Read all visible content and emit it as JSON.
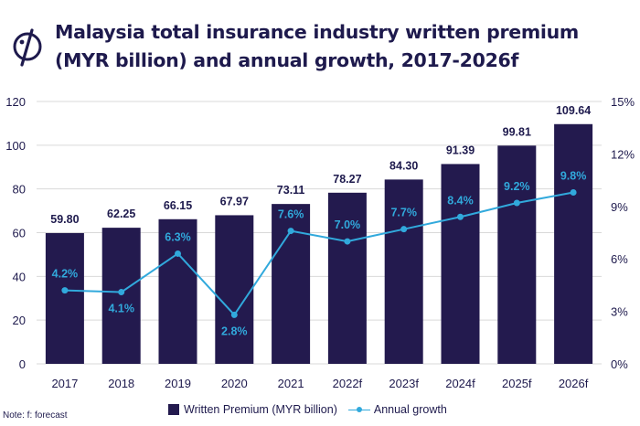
{
  "title": "Malaysia total insurance industry written premium (MYR billion) and annual growth, 2017-2026f",
  "note": "Note: f: forecast",
  "legend": {
    "bar_label": "Written Premium (MYR billion)",
    "line_label": "Annual growth"
  },
  "colors": {
    "bar": "#231a4e",
    "line": "#31a9dc",
    "grid": "#d9d9d9",
    "text": "#1e1a4d"
  },
  "chart_data": {
    "type": "bar",
    "title": "Malaysia total insurance industry written premium (MYR billion) and annual growth, 2017-2026f",
    "categories": [
      "2017",
      "2018",
      "2019",
      "2020",
      "2021",
      "2022f",
      "2023f",
      "2024f",
      "2025f",
      "2026f"
    ],
    "series": [
      {
        "name": "Written Premium (MYR billion)",
        "type": "bar",
        "axis": "left",
        "values": [
          59.8,
          62.25,
          66.15,
          67.97,
          73.11,
          78.27,
          84.3,
          91.39,
          99.81,
          109.64
        ],
        "labels": [
          "59.80",
          "62.25",
          "66.15",
          "67.97",
          "73.11",
          "78.27",
          "84.30",
          "91.39",
          "99.81",
          "109.64"
        ]
      },
      {
        "name": "Annual growth",
        "type": "line",
        "axis": "right",
        "values": [
          4.2,
          4.1,
          6.3,
          2.8,
          7.6,
          7.0,
          7.7,
          8.4,
          9.2,
          9.8
        ],
        "labels": [
          "4.2%",
          "4.1%",
          "6.3%",
          "2.8%",
          "7.6%",
          "7.0%",
          "7.7%",
          "8.4%",
          "9.2%",
          "9.8%"
        ]
      }
    ],
    "y_left": {
      "lim": [
        0,
        120
      ],
      "ticks": [
        0,
        20,
        40,
        60,
        80,
        100,
        120
      ],
      "tick_labels": [
        "0",
        "20",
        "40",
        "60",
        "80",
        "100",
        "120"
      ]
    },
    "y_right": {
      "lim": [
        0,
        15
      ],
      "ticks": [
        0,
        3,
        6,
        9,
        12,
        15
      ],
      "tick_labels": [
        "0%",
        "3%",
        "6%",
        "9%",
        "12%",
        "15%"
      ]
    },
    "grid": true,
    "legend_position": "bottom"
  }
}
